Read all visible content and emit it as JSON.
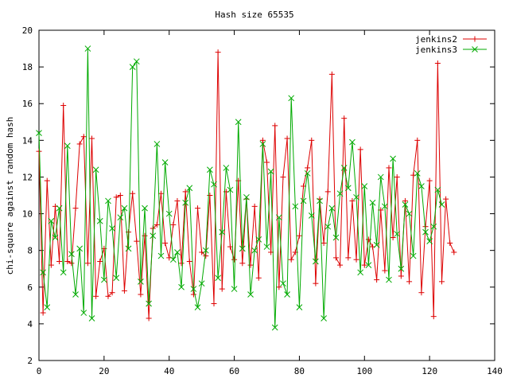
{
  "chart_data": {
    "type": "line",
    "title": "Hash size 65535",
    "xlabel": "",
    "ylabel": "chi-square against random hash",
    "xlim": [
      0,
      140
    ],
    "ylim": [
      2,
      20
    ],
    "xticks": [
      0,
      20,
      40,
      60,
      80,
      100,
      120,
      140
    ],
    "yticks": [
      2,
      4,
      6,
      8,
      10,
      12,
      14,
      16,
      18,
      20
    ],
    "xtick_labels": [
      "0",
      "20",
      "40",
      "60",
      "80",
      "100",
      "120",
      "140"
    ],
    "ytick_labels": [
      "2",
      "4",
      "6",
      "8",
      "10",
      "12",
      "14",
      "16",
      "18",
      "20"
    ],
    "grid": false,
    "legend_position": "top-right",
    "series": [
      {
        "name": "jenkins2",
        "color": "#dd0000",
        "marker": "plus",
        "values": [
          13.4,
          4.6,
          11.8,
          7.2,
          10.4,
          7.4,
          15.9,
          7.4,
          7.3,
          10.3,
          13.8,
          14.2,
          7.3,
          14.1,
          5.5,
          7.4,
          8.1,
          5.5,
          5.7,
          10.9,
          11.0,
          5.8,
          9.0,
          11.1,
          8.5,
          5.6,
          8.8,
          4.3,
          9.2,
          9.4,
          11.1,
          8.4,
          7.6,
          9.4,
          10.7,
          7.3,
          11.2,
          7.4,
          5.6,
          10.3,
          7.9,
          7.7,
          11.0,
          5.1,
          18.8,
          5.9,
          11.2,
          8.2,
          7.5,
          11.8,
          7.3,
          10.8,
          7.2,
          10.4,
          6.5,
          14.0,
          12.8,
          7.9,
          14.8,
          6.0,
          12.0,
          14.1,
          7.5,
          7.9,
          8.8,
          11.5,
          12.5,
          14.0,
          6.2,
          10.8,
          8.4,
          11.2,
          17.6,
          7.6,
          7.2,
          15.2,
          7.6,
          10.7,
          7.5,
          13.5,
          7.2,
          8.6,
          8.2,
          6.4,
          10.2,
          6.9,
          12.5,
          8.7,
          12.0,
          6.6,
          10.7,
          6.3,
          12.1,
          14.0,
          5.7,
          9.3,
          11.8,
          4.4,
          18.2,
          6.3,
          10.8,
          8.4,
          7.9
        ]
      },
      {
        "name": "jenkins3",
        "color": "#00aa00",
        "marker": "x",
        "values": [
          14.4,
          6.8,
          4.9,
          9.6,
          8.7,
          10.3,
          6.8,
          13.7,
          7.8,
          5.6,
          8.1,
          4.6,
          19.0,
          4.3,
          12.4,
          9.6,
          6.4,
          10.7,
          9.2,
          6.5,
          9.8,
          10.3,
          8.1,
          18.0,
          18.3,
          6.3,
          10.3,
          5.1,
          8.8,
          13.8,
          7.7,
          12.8,
          10.0,
          7.5,
          7.9,
          6.0,
          10.6,
          11.4,
          5.9,
          4.9,
          6.2,
          8.0,
          12.4,
          11.6,
          6.5,
          9.0,
          12.5,
          11.3,
          5.9,
          15.0,
          8.1,
          10.9,
          5.6,
          8.0,
          8.6,
          13.8,
          8.2,
          12.3,
          3.8,
          9.8,
          6.2,
          5.6,
          16.3,
          10.4,
          4.9,
          10.7,
          12.2,
          9.9,
          7.4,
          10.7,
          4.3,
          9.3,
          10.3,
          8.7,
          11.1,
          12.5,
          11.4,
          13.9,
          10.9,
          6.8,
          11.5,
          7.2,
          10.6,
          8.3,
          12.0,
          10.4,
          6.4,
          13.0,
          8.9,
          7.0,
          10.5,
          10.0,
          7.7,
          12.2,
          11.5,
          9.0,
          8.5,
          9.3,
          11.3,
          10.5
        ]
      }
    ]
  }
}
